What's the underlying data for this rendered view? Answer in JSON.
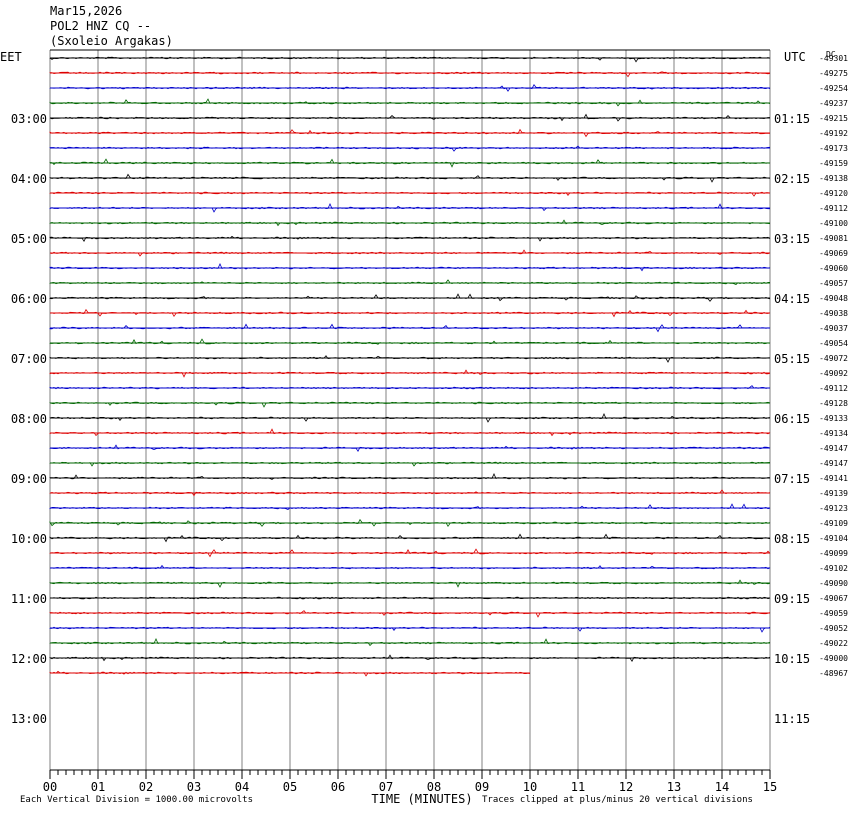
{
  "header": {
    "date": "Mar15,2026",
    "station": "POL2 HNZ CQ --",
    "site": "(Sxoleio Argakas)"
  },
  "footer": {
    "scale_note": "Each Vertical Division = 1000.00 microvolts",
    "clip_note": "Traces clipped at plus/minus 20 vertical divisions"
  },
  "colors": {
    "black": "#000000",
    "red": "#dd0000",
    "blue": "#0000cc",
    "green": "#006600",
    "grid": "#808080"
  },
  "chart_data": {
    "type": "line",
    "title": "",
    "xlabel": "TIME (MINUTES)",
    "ylabel_left": "EET",
    "ylabel_right": "UTC",
    "dc_label": "DC",
    "xlim": [
      0,
      15
    ],
    "x_ticks": [
      "00",
      "01",
      "02",
      "03",
      "04",
      "05",
      "06",
      "07",
      "08",
      "09",
      "10",
      "11",
      "12",
      "13",
      "14",
      "15"
    ],
    "left_time_labels": [
      "03:00",
      "04:00",
      "05:00",
      "06:00",
      "07:00",
      "08:00",
      "09:00",
      "10:00",
      "11:00",
      "12:00",
      "13:00"
    ],
    "right_time_labels": [
      "01:15",
      "02:15",
      "03:15",
      "04:15",
      "05:15",
      "06:15",
      "07:15",
      "08:15",
      "09:15",
      "10:15",
      "11:15"
    ],
    "trace_colors_cycle": [
      "black",
      "red",
      "blue",
      "green"
    ],
    "dc_offsets": [
      "-49301",
      "-49275",
      "-49254",
      "-49237",
      "-49215",
      "-49192",
      "-49173",
      "-49159",
      "-49138",
      "-49120",
      "-49112",
      "-49100",
      "-49081",
      "-49069",
      "-49060",
      "-49057",
      "-49048",
      "-49038",
      "-49037",
      "-49054",
      "-49072",
      "-49092",
      "-49112",
      "-49128",
      "-49133",
      "-49134",
      "-49147",
      "-49147",
      "-49141",
      "-49139",
      "-49123",
      "-49109",
      "-49104",
      "-49099",
      "-49102",
      "-49090",
      "-49067",
      "-49059",
      "-49052",
      "-49022",
      "-49000",
      "-48967"
    ],
    "last_trace_end_minute": 10
  }
}
